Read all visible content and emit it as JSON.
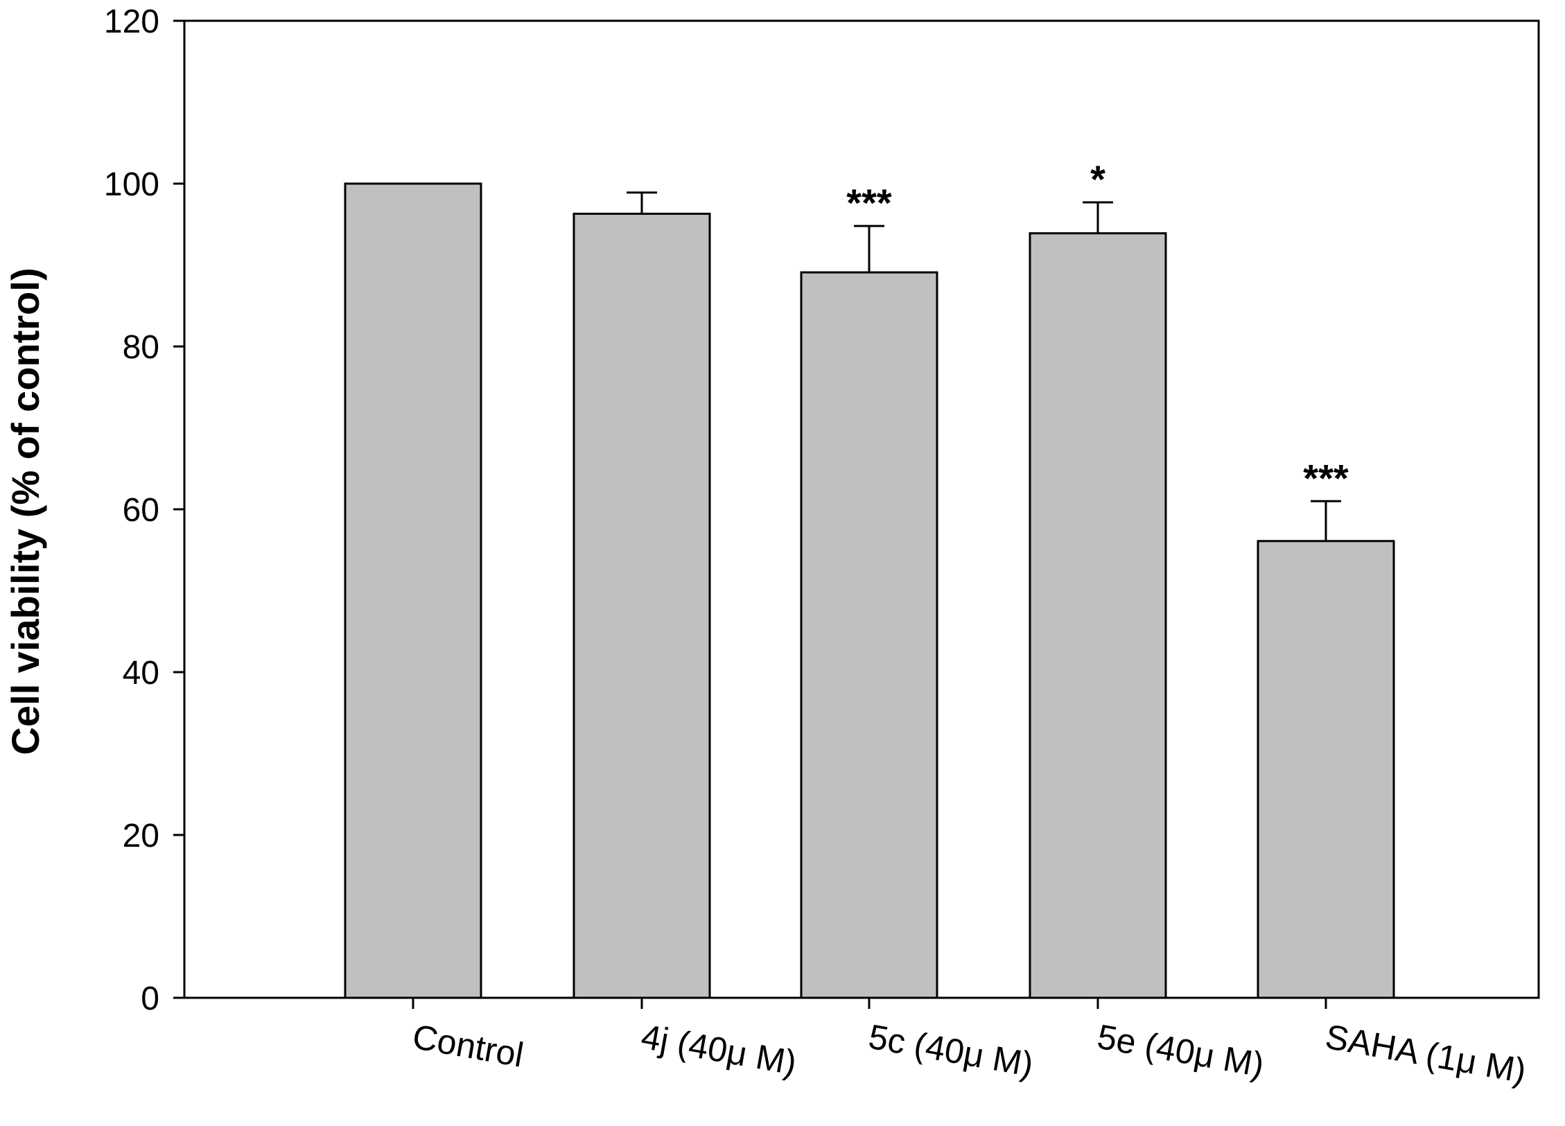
{
  "chart_data": {
    "type": "bar",
    "title": "",
    "xlabel": "",
    "ylabel": "Cell viability (% of control)",
    "ylim": [
      0,
      120
    ],
    "yticks": [
      0,
      20,
      40,
      60,
      80,
      100,
      120
    ],
    "grid": false,
    "categories": [
      "Control",
      "4j (40μ  M)",
      "5c (40μ  M)",
      "5e (40μ  M)",
      "SAHA (1μ  M)"
    ],
    "series": [
      {
        "values": [
          100,
          96.3,
          89.1,
          93.9,
          56.1
        ],
        "errors": [
          0,
          2.6,
          5.7,
          3.8,
          4.9
        ],
        "significance": [
          "",
          "",
          "***",
          "*",
          "***"
        ]
      }
    ],
    "colors": {
      "bar_fill": "#c0c0c0",
      "bar_stroke": "#000000"
    }
  }
}
